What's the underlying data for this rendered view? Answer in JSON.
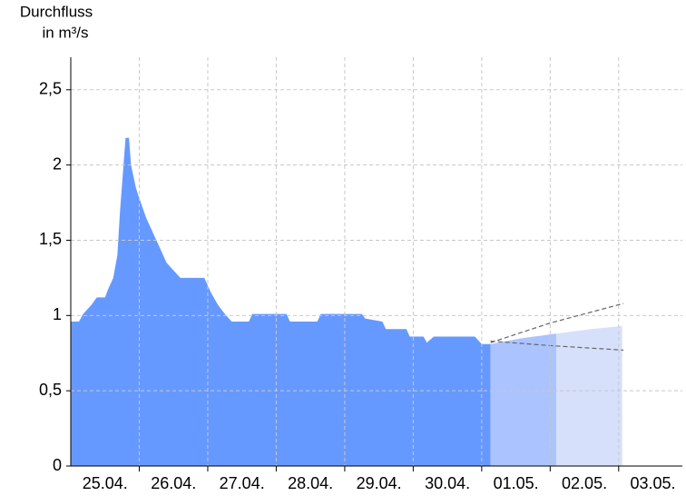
{
  "chart_data": {
    "type": "area",
    "ylabel": [
      "Durchfluss",
      "in m³/s"
    ],
    "xlim": [
      0,
      8.93
    ],
    "ylim": [
      0,
      2.716
    ],
    "yticks": [
      0,
      {
        "value": 0.5,
        "label": "0,5"
      },
      1,
      {
        "value": 1.5,
        "label": "1,5"
      },
      2,
      {
        "value": 2.5,
        "label": "2,5"
      }
    ],
    "xticks": [
      {
        "value": 0.5,
        "label": "25.04."
      },
      {
        "value": 1.5,
        "label": "26.04."
      },
      {
        "value": 2.5,
        "label": "27.04."
      },
      {
        "value": 3.5,
        "label": "28.04."
      },
      {
        "value": 4.5,
        "label": "29.04."
      },
      {
        "value": 5.5,
        "label": "30.04."
      },
      {
        "value": 6.5,
        "label": "01.05."
      },
      {
        "value": 7.5,
        "label": "02.05."
      },
      {
        "value": 8.5,
        "label": "03.05."
      }
    ],
    "grid": true,
    "series": [
      {
        "type": "area",
        "color": "#6699ff",
        "x": [
          0,
          0.12,
          0.18,
          0.3,
          0.38,
          0.5,
          0.55,
          0.62,
          0.68,
          0.72,
          0.77,
          0.8,
          0.85,
          0.88,
          0.95,
          1.0,
          1.1,
          1.2,
          1.3,
          1.4,
          1.5,
          1.6,
          1.95,
          2.05,
          2.15,
          2.25,
          2.35,
          2.6,
          2.65,
          3.15,
          3.2,
          3.6,
          3.65,
          4.25,
          4.3,
          4.55,
          4.6,
          4.9,
          4.95,
          5.15,
          5.2,
          5.3,
          5.9,
          6.0,
          6.13
        ],
        "values": [
          0.96,
          0.96,
          1.01,
          1.07,
          1.12,
          1.12,
          1.18,
          1.25,
          1.4,
          1.7,
          2.0,
          2.18,
          2.18,
          2.0,
          1.85,
          1.78,
          1.65,
          1.55,
          1.45,
          1.35,
          1.3,
          1.25,
          1.25,
          1.15,
          1.07,
          1.01,
          0.96,
          0.96,
          1.01,
          1.01,
          0.96,
          0.96,
          1.01,
          1.01,
          0.98,
          0.96,
          0.91,
          0.91,
          0.86,
          0.86,
          0.82,
          0.86,
          0.86,
          0.81,
          0.81
        ]
      },
      {
        "type": "area",
        "color": "#abc3ff",
        "x": [
          6.13,
          6.6,
          7.09
        ],
        "values": [
          0.81,
          0.85,
          0.88
        ]
      },
      {
        "type": "area",
        "color": "#d6e0fb",
        "x": [
          7.09,
          7.6,
          8.05
        ],
        "values": [
          0.88,
          0.91,
          0.93
        ]
      },
      {
        "type": "line",
        "color": "#666666",
        "dashed": true,
        "x": [
          6.13,
          7.0,
          8.07
        ],
        "values": [
          0.82,
          0.95,
          1.08
        ]
      },
      {
        "type": "line",
        "color": "#666666",
        "dashed": true,
        "x": [
          6.13,
          7.0,
          8.07
        ],
        "values": [
          0.83,
          0.8,
          0.77
        ]
      }
    ]
  }
}
